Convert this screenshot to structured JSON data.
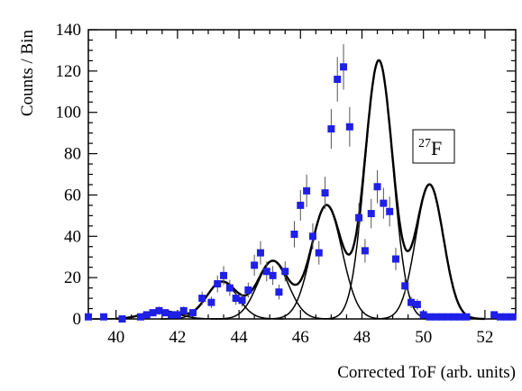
{
  "chart_data": {
    "type": "scatter",
    "xlabel": "Corrected ToF (arb. units)",
    "ylabel": "Counts / Bin",
    "xlim": [
      39.1,
      53.0
    ],
    "ylim": [
      0,
      140
    ],
    "x_ticks": [
      40,
      42,
      44,
      46,
      48,
      50,
      52
    ],
    "y_ticks": [
      0,
      20,
      40,
      60,
      80,
      100,
      120,
      140
    ],
    "annotation": {
      "mass_number": "27",
      "element": "F"
    },
    "colors": {
      "points": "#1f1fe6",
      "fit": "#000000",
      "error_bars": "#555555"
    },
    "grid": false,
    "series": [
      {
        "kind": "points",
        "x": [
          39.1,
          39.6,
          40.2,
          40.8,
          41.0,
          41.2,
          41.4,
          41.6,
          41.8,
          42.0,
          42.2,
          42.5,
          42.8,
          43.1,
          43.3,
          43.5,
          43.7,
          43.9,
          44.1,
          44.3,
          44.5,
          44.7,
          44.9,
          45.1,
          45.3,
          45.5,
          45.8,
          46.0,
          46.2,
          46.4,
          46.6,
          46.8,
          47.0,
          47.2,
          47.4,
          47.6,
          47.9,
          48.1,
          48.3,
          48.5,
          48.7,
          48.9,
          49.1,
          49.4,
          49.6,
          49.8,
          50.0,
          50.2,
          50.4,
          50.6,
          50.8,
          51.0,
          51.2,
          51.4,
          52.3,
          52.5,
          52.7,
          52.9
        ],
        "y": [
          1,
          1,
          0,
          1,
          2,
          3,
          4,
          3,
          2,
          2,
          4,
          3,
          10,
          8,
          17,
          21,
          15,
          10,
          9,
          14,
          26,
          32,
          23,
          21,
          13,
          23,
          41,
          55,
          62,
          40,
          32,
          61,
          92,
          116,
          122,
          93,
          49,
          33,
          51,
          64,
          56,
          52,
          29,
          16,
          8,
          7,
          2,
          1,
          1,
          1,
          1,
          1,
          1,
          1,
          2,
          1,
          1,
          1
        ],
        "y_err": [
          1,
          1,
          1,
          1,
          1.4,
          1.7,
          2,
          1.7,
          1.4,
          1.4,
          2,
          1.7,
          3.2,
          2.8,
          4.1,
          4.6,
          3.9,
          3.2,
          3,
          3.7,
          5.1,
          5.7,
          4.8,
          4.6,
          3.6,
          4.8,
          6.4,
          7.4,
          7.9,
          6.3,
          5.7,
          7.8,
          9.6,
          10.8,
          11,
          9.6,
          7,
          5.7,
          7.1,
          8,
          7.5,
          7.2,
          5.4,
          4,
          2.8,
          2.6,
          1.4,
          1,
          1,
          1,
          1,
          1,
          1,
          1,
          1.4,
          1,
          1,
          1
        ]
      },
      {
        "kind": "fit_components",
        "components": [
          {
            "center": 41.45,
            "amplitude": 4,
            "sigma": 0.55
          },
          {
            "center": 43.45,
            "amplitude": 18,
            "sigma": 0.5
          },
          {
            "center": 45.1,
            "amplitude": 28,
            "sigma": 0.5
          },
          {
            "center": 46.85,
            "amplitude": 55,
            "sigma": 0.5
          },
          {
            "center": 48.55,
            "amplitude": 125,
            "sigma": 0.45
          },
          {
            "center": 50.2,
            "amplitude": 65,
            "sigma": 0.45
          }
        ]
      }
    ]
  }
}
